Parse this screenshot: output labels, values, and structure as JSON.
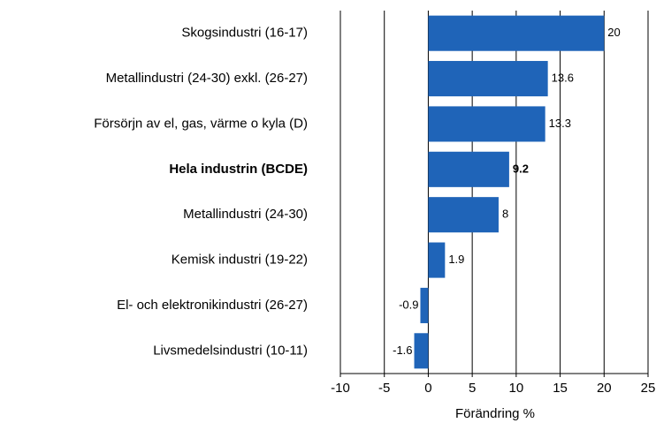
{
  "chart_data": {
    "type": "bar",
    "orientation": "horizontal",
    "categories": [
      "Skogsindustri (16-17)",
      "Metallindustri (24-30) exkl. (26-27)",
      "Försörjn av el, gas, värme o kyla (D)",
      "Hela industrin (BCDE)",
      "Metallindustri (24-30)",
      "Kemisk industri (19-22)",
      "El- och elektronikindustri (26-27)",
      "Livsmedelsindustri (10-11)"
    ],
    "values": [
      20,
      13.6,
      13.3,
      9.2,
      8,
      1.9,
      -0.9,
      -1.6
    ],
    "color": "#1f64b8",
    "bold_index": 3,
    "x_label": "Förändring %",
    "xlim": [
      -10,
      25
    ],
    "xticks": [
      -10,
      -5,
      0,
      5,
      10,
      15,
      20,
      25
    ],
    "grid": true
  }
}
